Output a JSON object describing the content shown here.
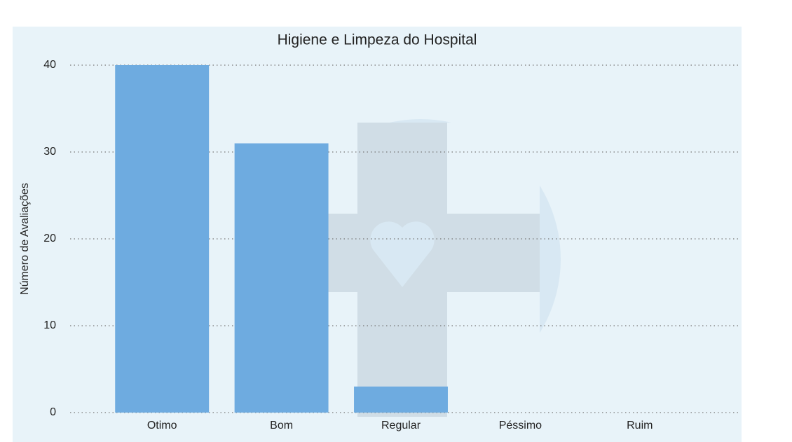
{
  "chart_data": {
    "type": "bar",
    "title": "Higiene e Limpeza do Hospital",
    "ylabel": "Número de Avaliações",
    "categories": [
      "Otimo",
      "Bom",
      "Regular",
      "Péssimo",
      "Ruim"
    ],
    "values": [
      40,
      31,
      3,
      0,
      0
    ],
    "color": "#6eabe0",
    "ylim": [
      0,
      40
    ],
    "yticks": [
      0,
      10,
      20,
      30,
      40
    ],
    "grid": true
  }
}
